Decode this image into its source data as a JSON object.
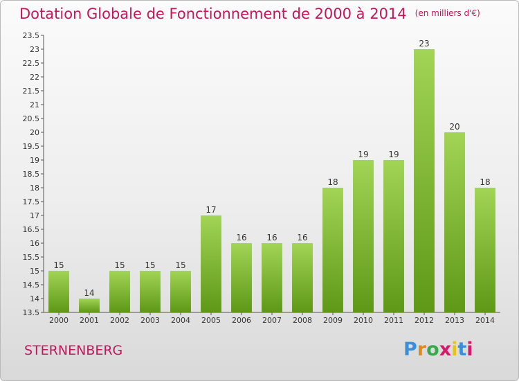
{
  "title": "Dotation Globale de Fonctionnement de 2000 à 2014",
  "units": "(en milliers d'€)",
  "commune": "STERNENBERG",
  "logo": {
    "text": "Proxiti",
    "letter_colors": [
      "#3b8fd6",
      "#e08a1e",
      "#3aa84c",
      "#d61a6a",
      "#e8c21c",
      "#3b8fd6",
      "#d61a6a"
    ]
  },
  "colors": {
    "title": "#c2185b",
    "bar_light": "#9fd24f",
    "bar_dark": "#5f9a17"
  },
  "chart_data": {
    "type": "bar",
    "categories": [
      "2000",
      "2001",
      "2002",
      "2003",
      "2004",
      "2005",
      "2006",
      "2007",
      "2008",
      "2009",
      "2010",
      "2011",
      "2012",
      "2013",
      "2014"
    ],
    "values": [
      15,
      14,
      15,
      15,
      15,
      17,
      16,
      16,
      16,
      18,
      19,
      19,
      23,
      20,
      18
    ],
    "ylim": [
      13.5,
      23.5
    ],
    "yticks": [
      "13.5",
      "14",
      "14.5",
      "15",
      "15.5",
      "16",
      "16.5",
      "17",
      "17.5",
      "18",
      "18.5",
      "19",
      "19.5",
      "20",
      "20.5",
      "21",
      "21.5",
      "22",
      "22.5",
      "23",
      "23.5"
    ],
    "grid": false,
    "xlabel": "",
    "ylabel": ""
  }
}
